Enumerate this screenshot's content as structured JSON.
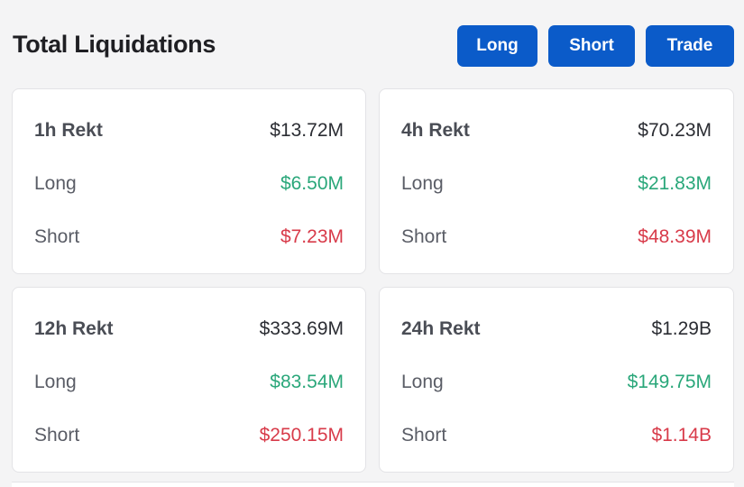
{
  "header": {
    "title": "Total Liquidations",
    "buttons": {
      "long": "Long",
      "short": "Short",
      "trade": "Trade"
    }
  },
  "colors": {
    "button_bg": "#0b5bc9",
    "long_value": "#2aa77a",
    "short_value": "#d83b4a"
  },
  "cards": [
    {
      "period_label": "1h Rekt",
      "total": "$13.72M",
      "long_label": "Long",
      "long": "$6.50M",
      "short_label": "Short",
      "short": "$7.23M"
    },
    {
      "period_label": "4h Rekt",
      "total": "$70.23M",
      "long_label": "Long",
      "long": "$21.83M",
      "short_label": "Short",
      "short": "$48.39M"
    },
    {
      "period_label": "12h Rekt",
      "total": "$333.69M",
      "long_label": "Long",
      "long": "$83.54M",
      "short_label": "Short",
      "short": "$250.15M"
    },
    {
      "period_label": "24h Rekt",
      "total": "$1.29B",
      "long_label": "Long",
      "long": "$149.75M",
      "short_label": "Short",
      "short": "$1.14B"
    }
  ]
}
